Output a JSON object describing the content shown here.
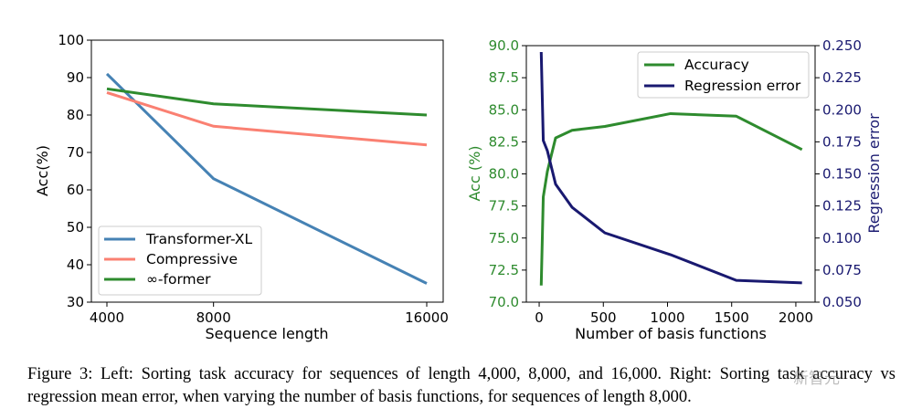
{
  "chart_data": [
    {
      "type": "line",
      "title": "",
      "xlabel": "Sequence length",
      "ylabel": "Acc(%)",
      "x": [
        4000,
        8000,
        16000
      ],
      "xticks": [
        4000,
        8000,
        16000
      ],
      "xtick_labels": [
        "4000",
        "8000",
        "16000"
      ],
      "ylim": [
        30,
        100
      ],
      "yticks": [
        30,
        40,
        50,
        60,
        70,
        80,
        90,
        100
      ],
      "ytick_labels": [
        "30",
        "40",
        "50",
        "60",
        "70",
        "80",
        "90",
        "100"
      ],
      "series": [
        {
          "name": "Transformer-XL",
          "color": "#4682b4",
          "values": [
            91,
            63,
            35
          ]
        },
        {
          "name": "Compressive",
          "color": "#fa8072",
          "values": [
            86,
            77,
            72
          ]
        },
        {
          "name": "∞-former",
          "color": "#2e8b2e",
          "values": [
            87,
            83,
            80
          ]
        }
      ],
      "legend_position": "bottom-left"
    },
    {
      "type": "line",
      "title": "",
      "xlabel": "Number of basis functions",
      "ylabel_left": "Acc (%)",
      "ylabel_right": "Regression error",
      "xlim": [
        -100,
        2150
      ],
      "xticks": [
        0,
        500,
        1000,
        1500,
        2000
      ],
      "xtick_labels": [
        "0",
        "500",
        "1000",
        "1500",
        "2000"
      ],
      "ylim_left": [
        70,
        90
      ],
      "yticks_left": [
        70,
        72.5,
        75,
        77.5,
        80,
        82.5,
        85,
        87.5,
        90
      ],
      "ytick_labels_left": [
        "70.0",
        "72.5",
        "75.0",
        "77.5",
        "80.0",
        "82.5",
        "85.0",
        "87.5",
        "90.0"
      ],
      "ylim_right": [
        0.05,
        0.25
      ],
      "yticks_right": [
        0.05,
        0.075,
        0.1,
        0.125,
        0.15,
        0.175,
        0.2,
        0.225,
        0.25
      ],
      "ytick_labels_right": [
        "0.050",
        "0.075",
        "0.100",
        "0.125",
        "0.150",
        "0.175",
        "0.200",
        "0.225",
        "0.250"
      ],
      "series": [
        {
          "name": "Accuracy",
          "axis": "left",
          "color": "#2e8b2e",
          "x": [
            16,
            32,
            64,
            128,
            256,
            512,
            1024,
            1536,
            2048
          ],
          "values": [
            71.3,
            78.2,
            80.2,
            82.8,
            83.4,
            83.7,
            84.7,
            84.5,
            81.9
          ]
        },
        {
          "name": "Regression error",
          "axis": "right",
          "color": "#191970",
          "x": [
            16,
            32,
            64,
            128,
            256,
            512,
            1024,
            1536,
            2048
          ],
          "values": [
            0.245,
            0.176,
            0.168,
            0.142,
            0.124,
            0.104,
            0.087,
            0.067,
            0.065
          ]
        }
      ],
      "legend_position": "top-right",
      "left_axis_color": "#2e8b2e",
      "right_axis_color": "#191970"
    }
  ],
  "caption": {
    "text": "Figure 3: Left: Sorting task accuracy for sequences of length 4,000, 8,000, and 16,000. Right: Sorting task accuracy vs regression mean error, when varying the number of basis functions, for sequences of length 8,000."
  },
  "watermark": {
    "text": "新智元"
  }
}
